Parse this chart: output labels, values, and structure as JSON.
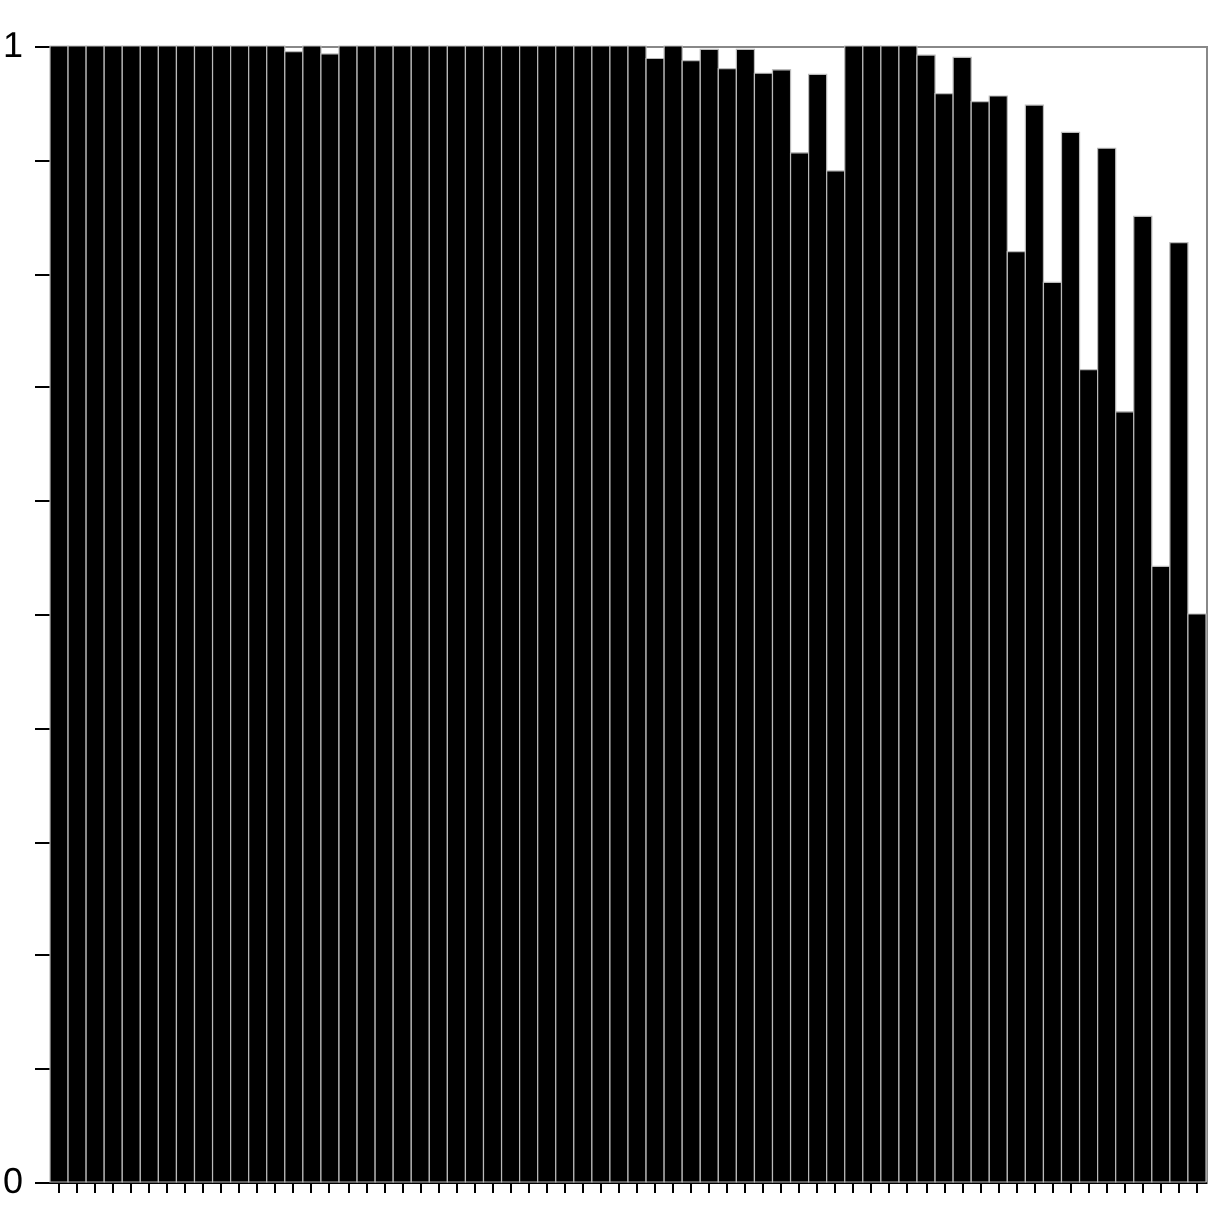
{
  "chart_data": {
    "type": "bar",
    "categories": [
      null,
      null,
      null,
      null,
      null,
      null,
      null,
      null,
      null,
      null,
      null,
      null,
      null,
      null,
      null,
      null,
      null,
      null,
      null,
      null,
      null,
      null,
      null,
      null,
      null,
      null,
      null,
      null,
      null,
      null,
      null,
      null,
      null,
      null,
      null,
      null,
      null,
      null,
      null,
      null,
      null,
      null,
      null,
      null,
      null,
      null,
      null,
      null,
      null,
      null,
      null,
      null,
      null,
      null,
      null,
      null,
      null,
      null,
      null,
      null,
      null,
      null,
      null,
      null
    ],
    "values": [
      1,
      1,
      1,
      1,
      1,
      1,
      1,
      1,
      1,
      1,
      1,
      1,
      1,
      0.995,
      1,
      0.993,
      1,
      1,
      1,
      1,
      1,
      1,
      1,
      1,
      1,
      1,
      1,
      1,
      1,
      1,
      1,
      1,
      1,
      0.989,
      1,
      0.987,
      0.997,
      0.98,
      0.997,
      0.976,
      0.979,
      0.906,
      0.975,
      0.89,
      1,
      1,
      1,
      1,
      0.992,
      0.958,
      0.99,
      0.951,
      0.956,
      0.819,
      0.948,
      0.792,
      0.924,
      0.715,
      0.91,
      0.678,
      0.85,
      0.542,
      0.827,
      0.5
    ],
    "color": "#000000",
    "ylim": [
      0,
      1
    ],
    "yticks": [
      0,
      {
        "value": 0.1,
        "label": null
      },
      {
        "value": 0.2,
        "label": null
      },
      {
        "value": 0.3,
        "label": null
      },
      {
        "value": 0.4,
        "label": null
      },
      {
        "value": 0.5,
        "label": null
      },
      {
        "value": 0.6,
        "label": null
      },
      {
        "value": 0.7,
        "label": null
      },
      {
        "value": 0.8,
        "label": null
      },
      {
        "value": 0.9,
        "label": null
      },
      1
    ],
    "tick_labels": "y",
    "grid": false
  }
}
